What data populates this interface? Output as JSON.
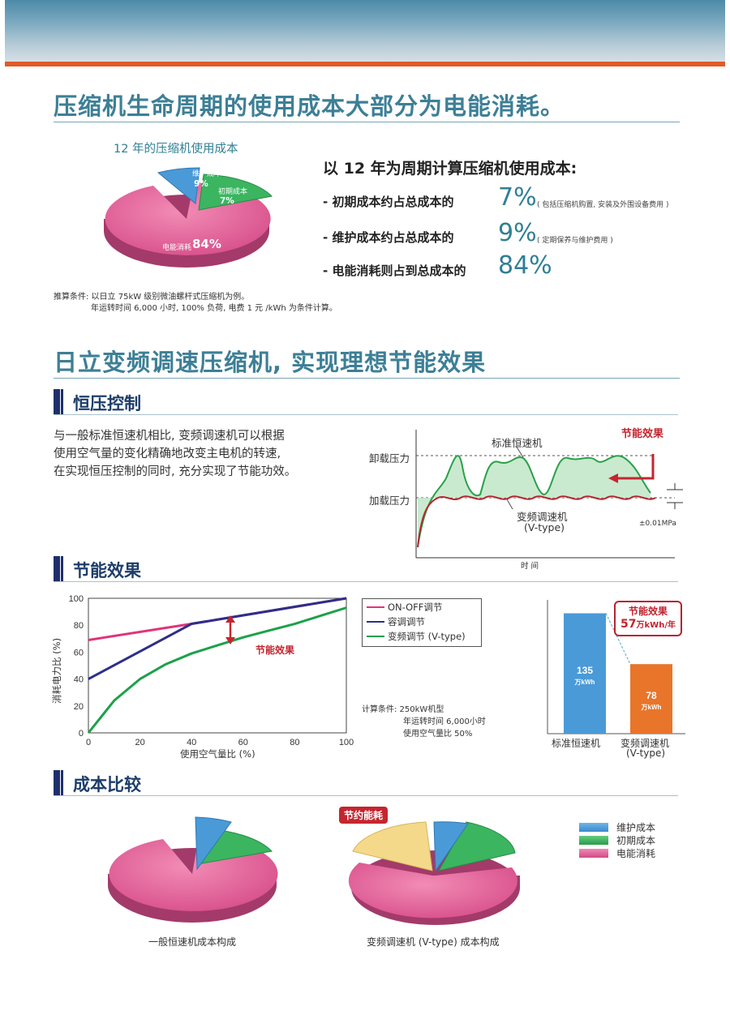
{
  "colors": {
    "accent": "#3d7f96",
    "banner_stripe": "#e05a28",
    "pink": "#e25e95",
    "blue": "#4a9ad8",
    "green": "#3bb560",
    "yellow": "#f4d98a",
    "red": "#c4262f",
    "navy": "#1e2f6b"
  },
  "section1": {
    "title": "压缩机生命周期的使用成本大部分为电能消耗。",
    "pie_title": "12 年的压缩机使用成本",
    "pie_labels": {
      "maint": "维护成本",
      "maint_pct": "9%",
      "initial": "初期成本",
      "initial_pct": "7%",
      "energy": "电能消耗",
      "energy_pct": "84%"
    },
    "calc_heading": "以 12 年为周期计算压缩机使用成本:",
    "items": [
      {
        "text": "- 初期成本约占总成本的",
        "pct": "7%",
        "note": "( 包括压缩机购置, 安装及外围设备费用 )"
      },
      {
        "text": "- 维护成本约占总成本的",
        "pct": "9%",
        "note": "( 定期保养与维护费用 )"
      },
      {
        "text": "- 电能消耗则占到总成本的",
        "pct": "84%",
        "note": ""
      }
    ],
    "condition_line1": "推算条件: 以日立 75kW 级别微油螺杆式压缩机为例。",
    "condition_line2": "年运转时间 6,000 小时, 100% 负荷, 电费 1 元 /kWh 为条件计算。"
  },
  "section2": {
    "title": "日立变频调速压缩机, 实现理想节能效果",
    "sub1": {
      "heading": "恒压控制",
      "para": [
        "与一般标准恒速机相比, 变频调速机可以根据",
        "使用空气量的变化精确地改变主电机的转速,",
        "在实现恒压控制的同时, 充分实现了节能功效。"
      ],
      "chart": {
        "unload": "卸载压力",
        "load": "加载压力",
        "std": "标准恒速机",
        "vtype_a": "变频调速机",
        "vtype_b": "(V-type)",
        "effect": "节能效果",
        "tolerance": "±0.01MPa",
        "xlabel": "时 间"
      }
    },
    "sub2": {
      "heading": "节能效果",
      "chart_data": {
        "type": "line",
        "xlabel": "使用空气量比 (%)",
        "ylabel": "消耗电力比 (%)",
        "xlim": [
          0,
          100
        ],
        "ylim": [
          0,
          100
        ],
        "x_ticks": [
          "0",
          "20",
          "40",
          "60",
          "80",
          "100"
        ],
        "y_ticks": [
          "0",
          "20",
          "40",
          "60",
          "80",
          "100"
        ],
        "series": [
          {
            "name": "ON-OFF调节",
            "color": "#e0347a",
            "x": [
              0,
              40,
              100
            ],
            "y": [
              69,
              81,
              100
            ]
          },
          {
            "name": "容调调节",
            "color": "#2d2f8a",
            "x": [
              0,
              40,
              100
            ],
            "y": [
              40,
              81,
              100
            ]
          },
          {
            "name": "变频调节 (V-type)",
            "color": "#1ca14a",
            "x": [
              0,
              10,
              20,
              30,
              40,
              50,
              60,
              70,
              80,
              90,
              100
            ],
            "y": [
              0,
              24,
              40,
              51,
              59,
              65,
              71,
              76,
              81,
              87,
              93
            ]
          }
        ],
        "annotation": "节能效果"
      },
      "calc": [
        "计算条件:  250kW机型",
        "年运转时间 6,000小时",
        "使用空气量比 50%"
      ],
      "bar_chart": {
        "type": "bar",
        "categories": [
          "标准恒速机",
          "变频调速机"
        ],
        "category_sub": [
          "",
          "(V-type)"
        ],
        "values": [
          135,
          78
        ],
        "value_unit": "万kWh",
        "ylim": [
          0,
          150
        ],
        "badge_title": "节能效果",
        "badge_value": "57",
        "badge_unit": "万kWh/年"
      }
    },
    "sub3": {
      "heading": "成本比较",
      "tag": "节约能耗",
      "pie1_caption": "一般恒速机成本构成",
      "pie2_caption": "变频调速机 (V-type) 成本构成",
      "legend": [
        "维护成本",
        "初期成本",
        "电能消耗"
      ]
    }
  }
}
